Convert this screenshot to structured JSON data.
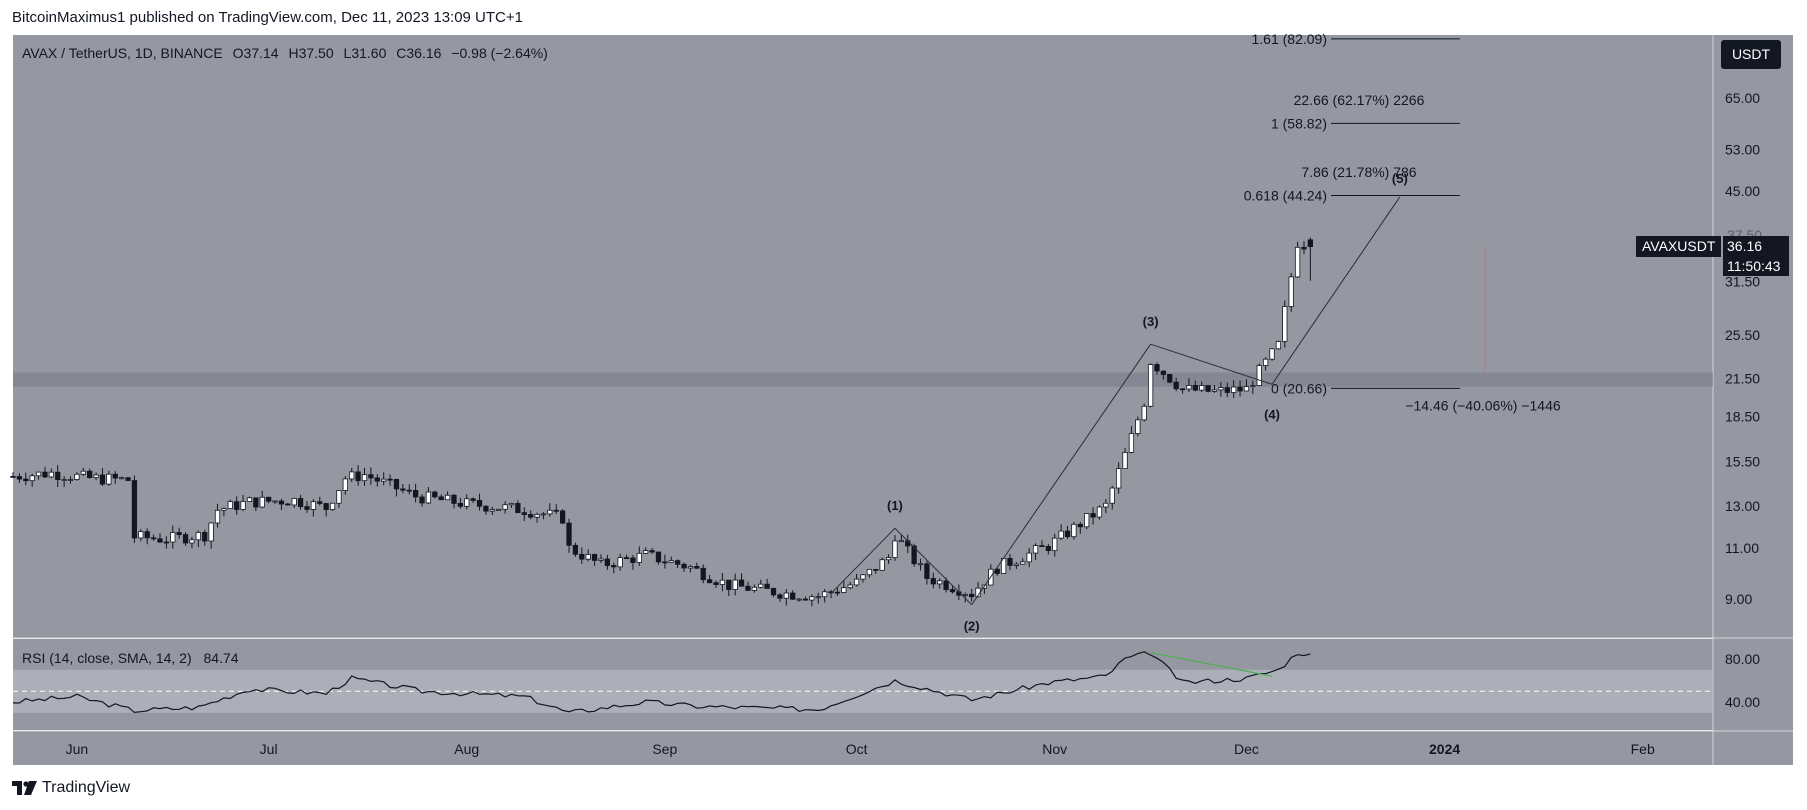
{
  "header": {
    "publisher": "BitcoinMaximus1 published on TradingView.com, Dec 11, 2023 13:09 UTC+1"
  },
  "legend": {
    "symbol": "AVAX / TetherUS, 1D, BINANCE",
    "o_label": "O",
    "o_value": "37.14",
    "h_label": "H",
    "h_value": "37.50",
    "l_label": "L",
    "l_value": "31.60",
    "c_label": "C",
    "c_value": "36.16",
    "change": "−0.98 (−2.64%)"
  },
  "currency_button": "USDT",
  "price_tag": {
    "ticker": "AVAXUSDT",
    "price": "36.16",
    "countdown": "11:50:43",
    "hidden_tick": "37.50"
  },
  "rsi": {
    "legend": "RSI (14, close, SMA, 14, 2)",
    "value": "84.74"
  },
  "footer": {
    "brand": "TradingView"
  },
  "colors": {
    "pane_bg": "#9598a1",
    "zone": "#b2b5be",
    "up_fill": "#ffffff",
    "down_fill": "#131722",
    "divergence": "#4caf50"
  },
  "chart_data": {
    "type": "candlestick",
    "title": "AVAX / TetherUS, 1D, BINANCE",
    "price_scale": "log",
    "y_ticks": [
      9.0,
      11.0,
      13.0,
      15.5,
      18.5,
      21.5,
      25.5,
      31.5,
      45.0,
      53.0,
      65.0
    ],
    "y_tick_labels": [
      "9.00",
      "11.00",
      "13.00",
      "15.50",
      "18.50",
      "21.50",
      "25.50",
      "31.50",
      "45.00",
      "53.00",
      "65.00"
    ],
    "x_range": [
      "2023-05-22",
      "2024-02-12"
    ],
    "x_labels": [
      {
        "date": "2023-06-01",
        "label": "Jun"
      },
      {
        "date": "2023-07-01",
        "label": "Jul"
      },
      {
        "date": "2023-08-01",
        "label": "Aug"
      },
      {
        "date": "2023-09-01",
        "label": "Sep"
      },
      {
        "date": "2023-10-01",
        "label": "Oct"
      },
      {
        "date": "2023-11-01",
        "label": "Nov"
      },
      {
        "date": "2023-12-01",
        "label": "Dec"
      },
      {
        "date": "2024-01-01",
        "label": "2024"
      },
      {
        "date": "2024-02-01",
        "label": "Feb"
      }
    ],
    "support_zone": [
      20.8,
      22.0
    ],
    "close_path": [
      {
        "d": "2023-05-22",
        "c": 14.6
      },
      {
        "d": "2023-05-28",
        "c": 14.8
      },
      {
        "d": "2023-06-03",
        "c": 14.5
      },
      {
        "d": "2023-06-09",
        "c": 14.4
      },
      {
        "d": "2023-06-10",
        "c": 11.5
      },
      {
        "d": "2023-06-15",
        "c": 11.4
      },
      {
        "d": "2023-06-21",
        "c": 11.6
      },
      {
        "d": "2023-06-23",
        "c": 12.8
      },
      {
        "d": "2023-06-28",
        "c": 13.2
      },
      {
        "d": "2023-07-05",
        "c": 13.3
      },
      {
        "d": "2023-07-10",
        "c": 12.9
      },
      {
        "d": "2023-07-13",
        "c": 14.5
      },
      {
        "d": "2023-07-16",
        "c": 14.7
      },
      {
        "d": "2023-07-24",
        "c": 13.5
      },
      {
        "d": "2023-08-01",
        "c": 13.1
      },
      {
        "d": "2023-08-10",
        "c": 12.8
      },
      {
        "d": "2023-08-16",
        "c": 12.4
      },
      {
        "d": "2023-08-17",
        "c": 11.0
      },
      {
        "d": "2023-08-22",
        "c": 10.3
      },
      {
        "d": "2023-08-29",
        "c": 10.7
      },
      {
        "d": "2023-09-05",
        "c": 10.2
      },
      {
        "d": "2023-09-11",
        "c": 9.5
      },
      {
        "d": "2023-09-20",
        "c": 9.2
      },
      {
        "d": "2023-09-25",
        "c": 9.1
      },
      {
        "d": "2023-10-01",
        "c": 9.6
      },
      {
        "d": "2023-10-06",
        "c": 10.6
      },
      {
        "d": "2023-10-07",
        "c": 11.6
      },
      {
        "d": "2023-10-12",
        "c": 9.8
      },
      {
        "d": "2023-10-19",
        "c": 9.2
      },
      {
        "d": "2023-10-23",
        "c": 10.2
      },
      {
        "d": "2023-10-31",
        "c": 11.1
      },
      {
        "d": "2023-11-09",
        "c": 13.0
      },
      {
        "d": "2023-11-12",
        "c": 15.9
      },
      {
        "d": "2023-11-15",
        "c": 19.6
      },
      {
        "d": "2023-11-16",
        "c": 23.0
      },
      {
        "d": "2023-11-21",
        "c": 20.6
      },
      {
        "d": "2023-11-26",
        "c": 20.4
      },
      {
        "d": "2023-12-01",
        "c": 20.6
      },
      {
        "d": "2023-12-06",
        "c": 24.5
      },
      {
        "d": "2023-12-09",
        "c": 36.8
      },
      {
        "d": "2023-12-11",
        "c": 36.16
      }
    ],
    "wave_labels": [
      {
        "label": "(1)",
        "date": "2023-10-07",
        "price": 11.9
      },
      {
        "label": "(2)",
        "date": "2023-10-19",
        "price": 8.8
      },
      {
        "label": "(3)",
        "date": "2023-11-16",
        "price": 24.6
      },
      {
        "label": "(4)",
        "date": "2023-12-05",
        "price": 20.3
      },
      {
        "label": "(5)",
        "date": "2023-12-25",
        "price": 44.0
      }
    ],
    "fib_levels": [
      {
        "ratio": "0",
        "price": 20.66,
        "label": "0 (20.66)"
      },
      {
        "ratio": "0.618",
        "price": 44.24,
        "label": "0.618 (44.24)"
      },
      {
        "ratio": "1",
        "price": 58.82,
        "label": "1 (58.82)"
      },
      {
        "ratio": "1.61",
        "price": 82.09,
        "label": "1.61 (82.09)"
      }
    ],
    "measure_labels": [
      {
        "text": "7.86 (21.78%) 786",
        "price": 48.5
      },
      {
        "text": "22.66 (62.17%) 2266",
        "price": 64.5
      },
      {
        "text": "−14.46 (−40.06%) −1446",
        "price": 20.66
      }
    ],
    "rsi": {
      "value": 84.74,
      "ticks": [
        40,
        80
      ],
      "tick_labels": [
        "40.00",
        "80.00"
      ],
      "overbought": 70,
      "oversold": 30,
      "midline": 50,
      "path": [
        {
          "d": "2023-05-22",
          "v": 40
        },
        {
          "d": "2023-06-01",
          "v": 45
        },
        {
          "d": "2023-06-10",
          "v": 32
        },
        {
          "d": "2023-06-20",
          "v": 35
        },
        {
          "d": "2023-06-28",
          "v": 52
        },
        {
          "d": "2023-07-10",
          "v": 48
        },
        {
          "d": "2023-07-14",
          "v": 62
        },
        {
          "d": "2023-07-25",
          "v": 50
        },
        {
          "d": "2023-08-10",
          "v": 45
        },
        {
          "d": "2023-08-17",
          "v": 30
        },
        {
          "d": "2023-08-29",
          "v": 40
        },
        {
          "d": "2023-09-06",
          "v": 36
        },
        {
          "d": "2023-09-25",
          "v": 33
        },
        {
          "d": "2023-10-07",
          "v": 60
        },
        {
          "d": "2023-10-19",
          "v": 42
        },
        {
          "d": "2023-10-31",
          "v": 58
        },
        {
          "d": "2023-11-09",
          "v": 64
        },
        {
          "d": "2023-11-12",
          "v": 80
        },
        {
          "d": "2023-11-16",
          "v": 86
        },
        {
          "d": "2023-11-21",
          "v": 58
        },
        {
          "d": "2023-11-26",
          "v": 60
        },
        {
          "d": "2023-12-01",
          "v": 62
        },
        {
          "d": "2023-12-06",
          "v": 70
        },
        {
          "d": "2023-12-09",
          "v": 86
        },
        {
          "d": "2023-12-11",
          "v": 84.74
        }
      ],
      "divergence": [
        {
          "d": "2023-11-16",
          "v": 86
        },
        {
          "d": "2023-12-05",
          "v": 64
        }
      ]
    }
  }
}
